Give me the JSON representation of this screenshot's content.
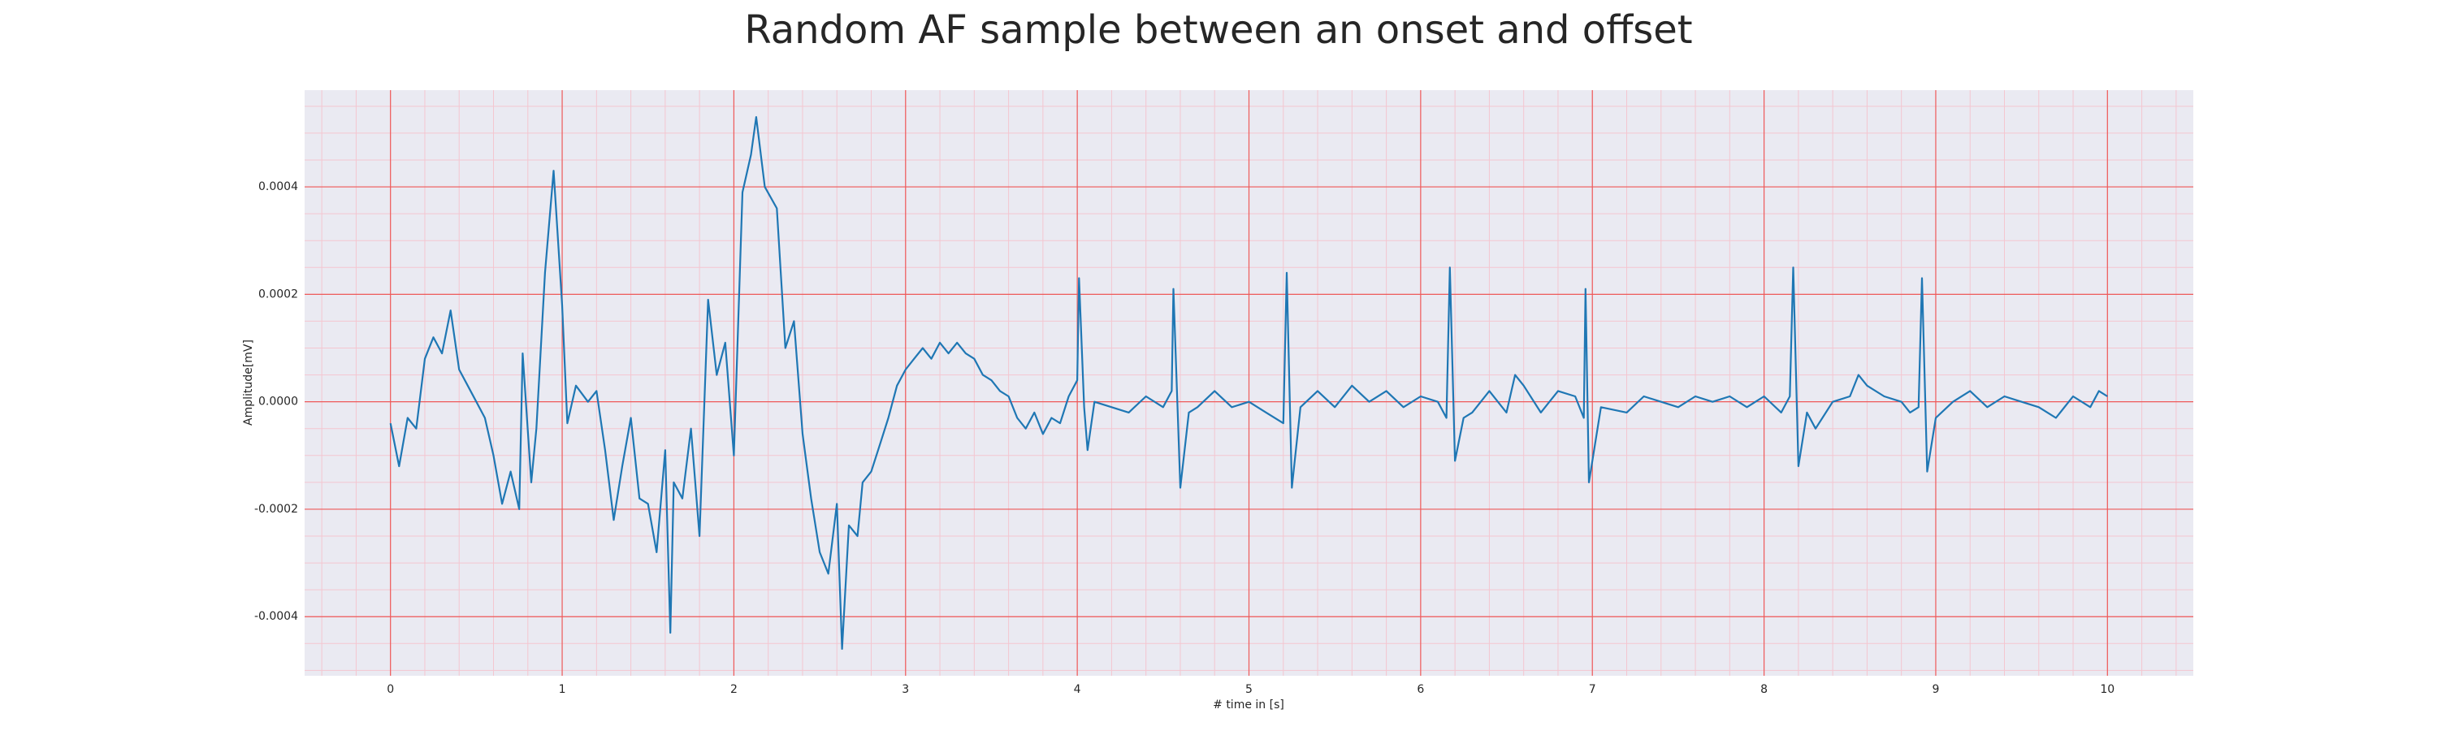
{
  "chart_data": {
    "type": "line",
    "title": "Random AF sample between an onset and offset",
    "xlabel": "# time in [s]",
    "ylabel": "Amplitude[mV]",
    "color": "#1f77b4",
    "grid": true,
    "xlim": [
      -0.5,
      10.5
    ],
    "ylim": [
      -0.00051,
      0.00058
    ],
    "xticks": [
      0,
      1,
      2,
      3,
      4,
      5,
      6,
      7,
      8,
      9,
      10
    ],
    "yticks": [
      -0.0004,
      -0.0002,
      {
        "value": 0,
        "label": "0.0000"
      },
      0.0002,
      0.0004
    ],
    "x": [
      0,
      0.05,
      0.1,
      0.15,
      0.2,
      0.25,
      0.3,
      0.35,
      0.4,
      0.45,
      0.5,
      0.55,
      0.6,
      0.65,
      0.7,
      0.75,
      0.77,
      0.82,
      0.85,
      0.9,
      0.95,
      1.0,
      1.03,
      1.08,
      1.15,
      1.2,
      1.25,
      1.3,
      1.35,
      1.4,
      1.45,
      1.5,
      1.55,
      1.6,
      1.63,
      1.65,
      1.7,
      1.75,
      1.8,
      1.85,
      1.9,
      1.95,
      2.0,
      2.05,
      2.1,
      2.13,
      2.18,
      2.25,
      2.3,
      2.35,
      2.4,
      2.45,
      2.5,
      2.55,
      2.6,
      2.63,
      2.67,
      2.72,
      2.75,
      2.8,
      2.85,
      2.9,
      2.95,
      3.0,
      3.05,
      3.1,
      3.15,
      3.2,
      3.25,
      3.3,
      3.35,
      3.4,
      3.45,
      3.5,
      3.55,
      3.6,
      3.65,
      3.7,
      3.75,
      3.8,
      3.85,
      3.9,
      3.95,
      4.0,
      4.01,
      4.04,
      4.06,
      4.1,
      4.2,
      4.3,
      4.4,
      4.5,
      4.55,
      4.56,
      4.6,
      4.65,
      4.7,
      4.8,
      4.9,
      5.0,
      5.1,
      5.2,
      5.22,
      5.25,
      5.3,
      5.4,
      5.5,
      5.6,
      5.7,
      5.8,
      5.9,
      6.0,
      6.1,
      6.15,
      6.17,
      6.2,
      6.25,
      6.3,
      6.4,
      6.5,
      6.55,
      6.6,
      6.7,
      6.8,
      6.9,
      6.95,
      6.96,
      6.98,
      7.05,
      7.2,
      7.3,
      7.4,
      7.5,
      7.6,
      7.7,
      7.8,
      7.9,
      8.0,
      8.1,
      8.15,
      8.17,
      8.2,
      8.25,
      8.3,
      8.4,
      8.5,
      8.55,
      8.6,
      8.7,
      8.8,
      8.85,
      8.9,
      8.92,
      8.95,
      9.0,
      9.1,
      9.2,
      9.3,
      9.4,
      9.5,
      9.6,
      9.7,
      9.8,
      9.9,
      9.95,
      10.0
    ],
    "values": [
      -4e-05,
      -0.00012,
      -3e-05,
      -5e-05,
      8e-05,
      0.00012,
      9e-05,
      0.00017,
      6e-05,
      3e-05,
      0.0,
      -3e-05,
      -0.0001,
      -0.00019,
      -0.00013,
      -0.0002,
      9e-05,
      -0.00015,
      -5e-05,
      0.00024,
      0.00043,
      0.00018,
      -4e-05,
      3e-05,
      0.0,
      2e-05,
      -9e-05,
      -0.00022,
      -0.00012,
      -3e-05,
      -0.00018,
      -0.00019,
      -0.00028,
      -9e-05,
      -0.00043,
      -0.00015,
      -0.00018,
      -5e-05,
      -0.00025,
      0.00019,
      5e-05,
      0.00011,
      -0.0001,
      0.00039,
      0.00046,
      0.00053,
      0.0004,
      0.00036,
      0.0001,
      0.00015,
      -6e-05,
      -0.00018,
      -0.00028,
      -0.00032,
      -0.00019,
      -0.00046,
      -0.00023,
      -0.00025,
      -0.00015,
      -0.00013,
      -8e-05,
      -3e-05,
      3e-05,
      6e-05,
      8e-05,
      0.0001,
      8e-05,
      0.00011,
      9e-05,
      0.00011,
      9e-05,
      8e-05,
      5e-05,
      4e-05,
      2e-05,
      1e-05,
      -3e-05,
      -5e-05,
      -2e-05,
      -6e-05,
      -3e-05,
      -4e-05,
      1e-05,
      4e-05,
      0.00023,
      -1e-05,
      -9e-05,
      0.0,
      -1e-05,
      -2e-05,
      1e-05,
      -1e-05,
      2e-05,
      0.00021,
      -0.00016,
      -2e-05,
      -1e-05,
      2e-05,
      -1e-05,
      0.0,
      -2e-05,
      -4e-05,
      0.00024,
      -0.00016,
      -1e-05,
      2e-05,
      -1e-05,
      3e-05,
      0.0,
      2e-05,
      -1e-05,
      1e-05,
      0.0,
      -3e-05,
      0.00025,
      -0.00011,
      -3e-05,
      -2e-05,
      2e-05,
      -2e-05,
      5e-05,
      3e-05,
      -2e-05,
      2e-05,
      1e-05,
      -3e-05,
      0.00021,
      -0.00015,
      -1e-05,
      -2e-05,
      1e-05,
      0.0,
      -1e-05,
      1e-05,
      0.0,
      1e-05,
      -1e-05,
      1e-05,
      -2e-05,
      1e-05,
      0.00025,
      -0.00012,
      -2e-05,
      -5e-05,
      0.0,
      1e-05,
      5e-05,
      3e-05,
      1e-05,
      0.0,
      -2e-05,
      -1e-05,
      0.00023,
      -0.00013,
      -3e-05,
      0.0,
      2e-05,
      -1e-05,
      1e-05,
      0.0,
      -1e-05,
      -3e-05,
      1e-05,
      -1e-05,
      2e-05,
      1e-05
    ]
  }
}
